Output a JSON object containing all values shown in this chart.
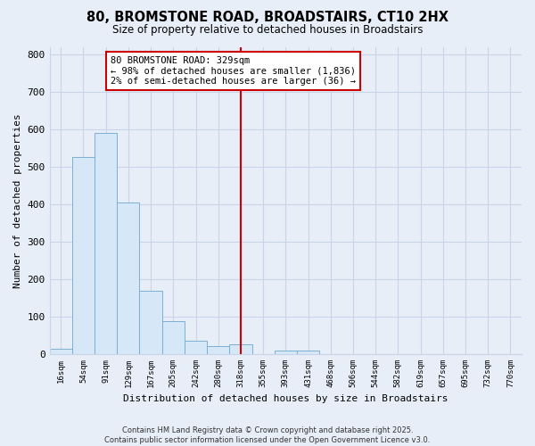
{
  "title": "80, BROMSTONE ROAD, BROADSTAIRS, CT10 2HX",
  "subtitle": "Size of property relative to detached houses in Broadstairs",
  "xlabel": "Distribution of detached houses by size in Broadstairs",
  "ylabel": "Number of detached properties",
  "bar_labels": [
    "16sqm",
    "54sqm",
    "91sqm",
    "129sqm",
    "167sqm",
    "205sqm",
    "242sqm",
    "280sqm",
    "318sqm",
    "355sqm",
    "393sqm",
    "431sqm",
    "468sqm",
    "506sqm",
    "544sqm",
    "582sqm",
    "619sqm",
    "657sqm",
    "695sqm",
    "732sqm",
    "770sqm"
  ],
  "bar_values": [
    15,
    527,
    591,
    404,
    169,
    88,
    35,
    22,
    27,
    0,
    10,
    10,
    0,
    0,
    0,
    0,
    0,
    0,
    0,
    0,
    0
  ],
  "bar_color": "#d6e8f7",
  "bar_edge_color": "#7ab0d4",
  "vline_x": 8,
  "vline_color": "#cc0000",
  "annotation_title": "80 BROMSTONE ROAD: 329sqm",
  "annotation_line1": "← 98% of detached houses are smaller (1,836)",
  "annotation_line2": "2% of semi-detached houses are larger (36) →",
  "annotation_box_color": "#ffffff",
  "annotation_box_edge": "#cc0000",
  "ylim": [
    0,
    820
  ],
  "yticks": [
    0,
    100,
    200,
    300,
    400,
    500,
    600,
    700,
    800
  ],
  "background_color": "#e8eef8",
  "plot_bg_color": "#e8eef8",
  "grid_color": "#c8d4e8",
  "footer1": "Contains HM Land Registry data © Crown copyright and database right 2025.",
  "footer2": "Contains public sector information licensed under the Open Government Licence v3.0."
}
